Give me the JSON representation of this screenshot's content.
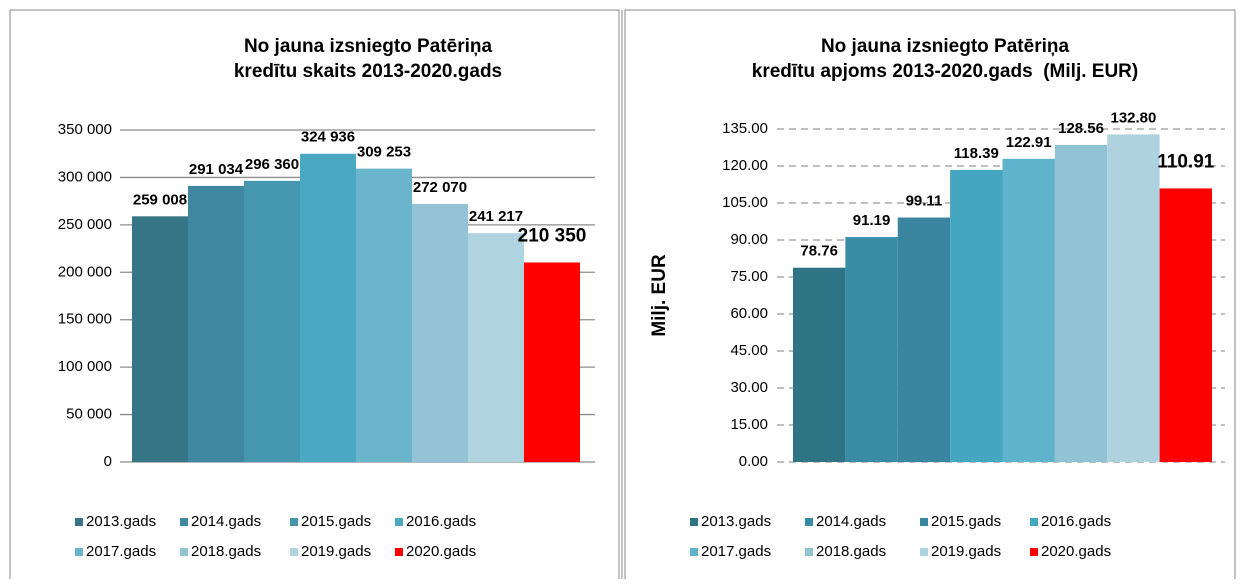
{
  "chart_data": [
    {
      "type": "bar",
      "title": [
        "No jauna izsniegto Patēriņa",
        "kredītu skaits 2013-2020.gads"
      ],
      "categories": [
        "2013.gads",
        "2014.gads",
        "2015.gads",
        "2016.gads",
        "2017.gads",
        "2018.gads",
        "2019.gads",
        "2020.gads"
      ],
      "values": [
        259008,
        291034,
        296360,
        324936,
        309253,
        272070,
        241217,
        210350
      ],
      "value_labels": [
        "259 008",
        "291 034",
        "296 360",
        "324 936",
        "309 253",
        "272 070",
        "241 217",
        "210 350"
      ],
      "colors": [
        "#357586",
        "#3f87a0",
        "#4497ae",
        "#4ba8c2",
        "#6bb5cc",
        "#93c3d4",
        "#afd4e0",
        "#ff0000"
      ],
      "ylim": [
        0,
        350000
      ],
      "yticks": [
        0,
        {
          "value": 50000,
          "label": "50 000"
        },
        {
          "value": 100000,
          "label": "100 000"
        },
        {
          "value": 150000,
          "label": "150 000"
        },
        {
          "value": 200000,
          "label": "200 000"
        },
        {
          "value": 250000,
          "label": "250 000"
        },
        {
          "value": 300000,
          "label": "300 000"
        },
        {
          "value": 350000,
          "label": "350 000"
        }
      ],
      "grid": true,
      "grid_style": "solid"
    },
    {
      "type": "bar",
      "title": [
        "No jauna izsniegto Patēriņa",
        "kredītu apjoms 2013-2020.gads  (Milj. EUR)"
      ],
      "y_label": "Milj. EUR",
      "categories": [
        "2013.gads",
        "2014.gads",
        "2015.gads",
        "2016.gads",
        "2017.gads",
        "2018.gads",
        "2019.gads",
        "2020.gads"
      ],
      "values": [
        78.76,
        91.19,
        99.11,
        118.39,
        122.91,
        128.56,
        132.8,
        110.91
      ],
      "value_labels": [
        "78.76",
        "91.19",
        "99.11",
        "118.39",
        "122.91",
        "128.56",
        "132.80",
        "110.91"
      ],
      "colors": [
        "#2f7485",
        "#3a8ba6",
        "#3a85a0",
        "#45a6c2",
        "#5fb3cd",
        "#91c3d5",
        "#aed3df",
        "#ff0000"
      ],
      "ylim": [
        0,
        135
      ],
      "yticks": [
        {
          "value": 0,
          "label": "0.00"
        },
        {
          "value": 15,
          "label": "15.00"
        },
        {
          "value": 30,
          "label": "30.00"
        },
        {
          "value": 45,
          "label": "45.00"
        },
        {
          "value": 60,
          "label": "60.00"
        },
        {
          "value": 75,
          "label": "75.00"
        },
        {
          "value": 90,
          "label": "90.00"
        },
        {
          "value": 105,
          "label": "105.00"
        },
        {
          "value": 120,
          "label": "120.00"
        },
        {
          "value": 135,
          "label": "135.00"
        }
      ],
      "grid": true,
      "grid_style": "dashed"
    }
  ]
}
